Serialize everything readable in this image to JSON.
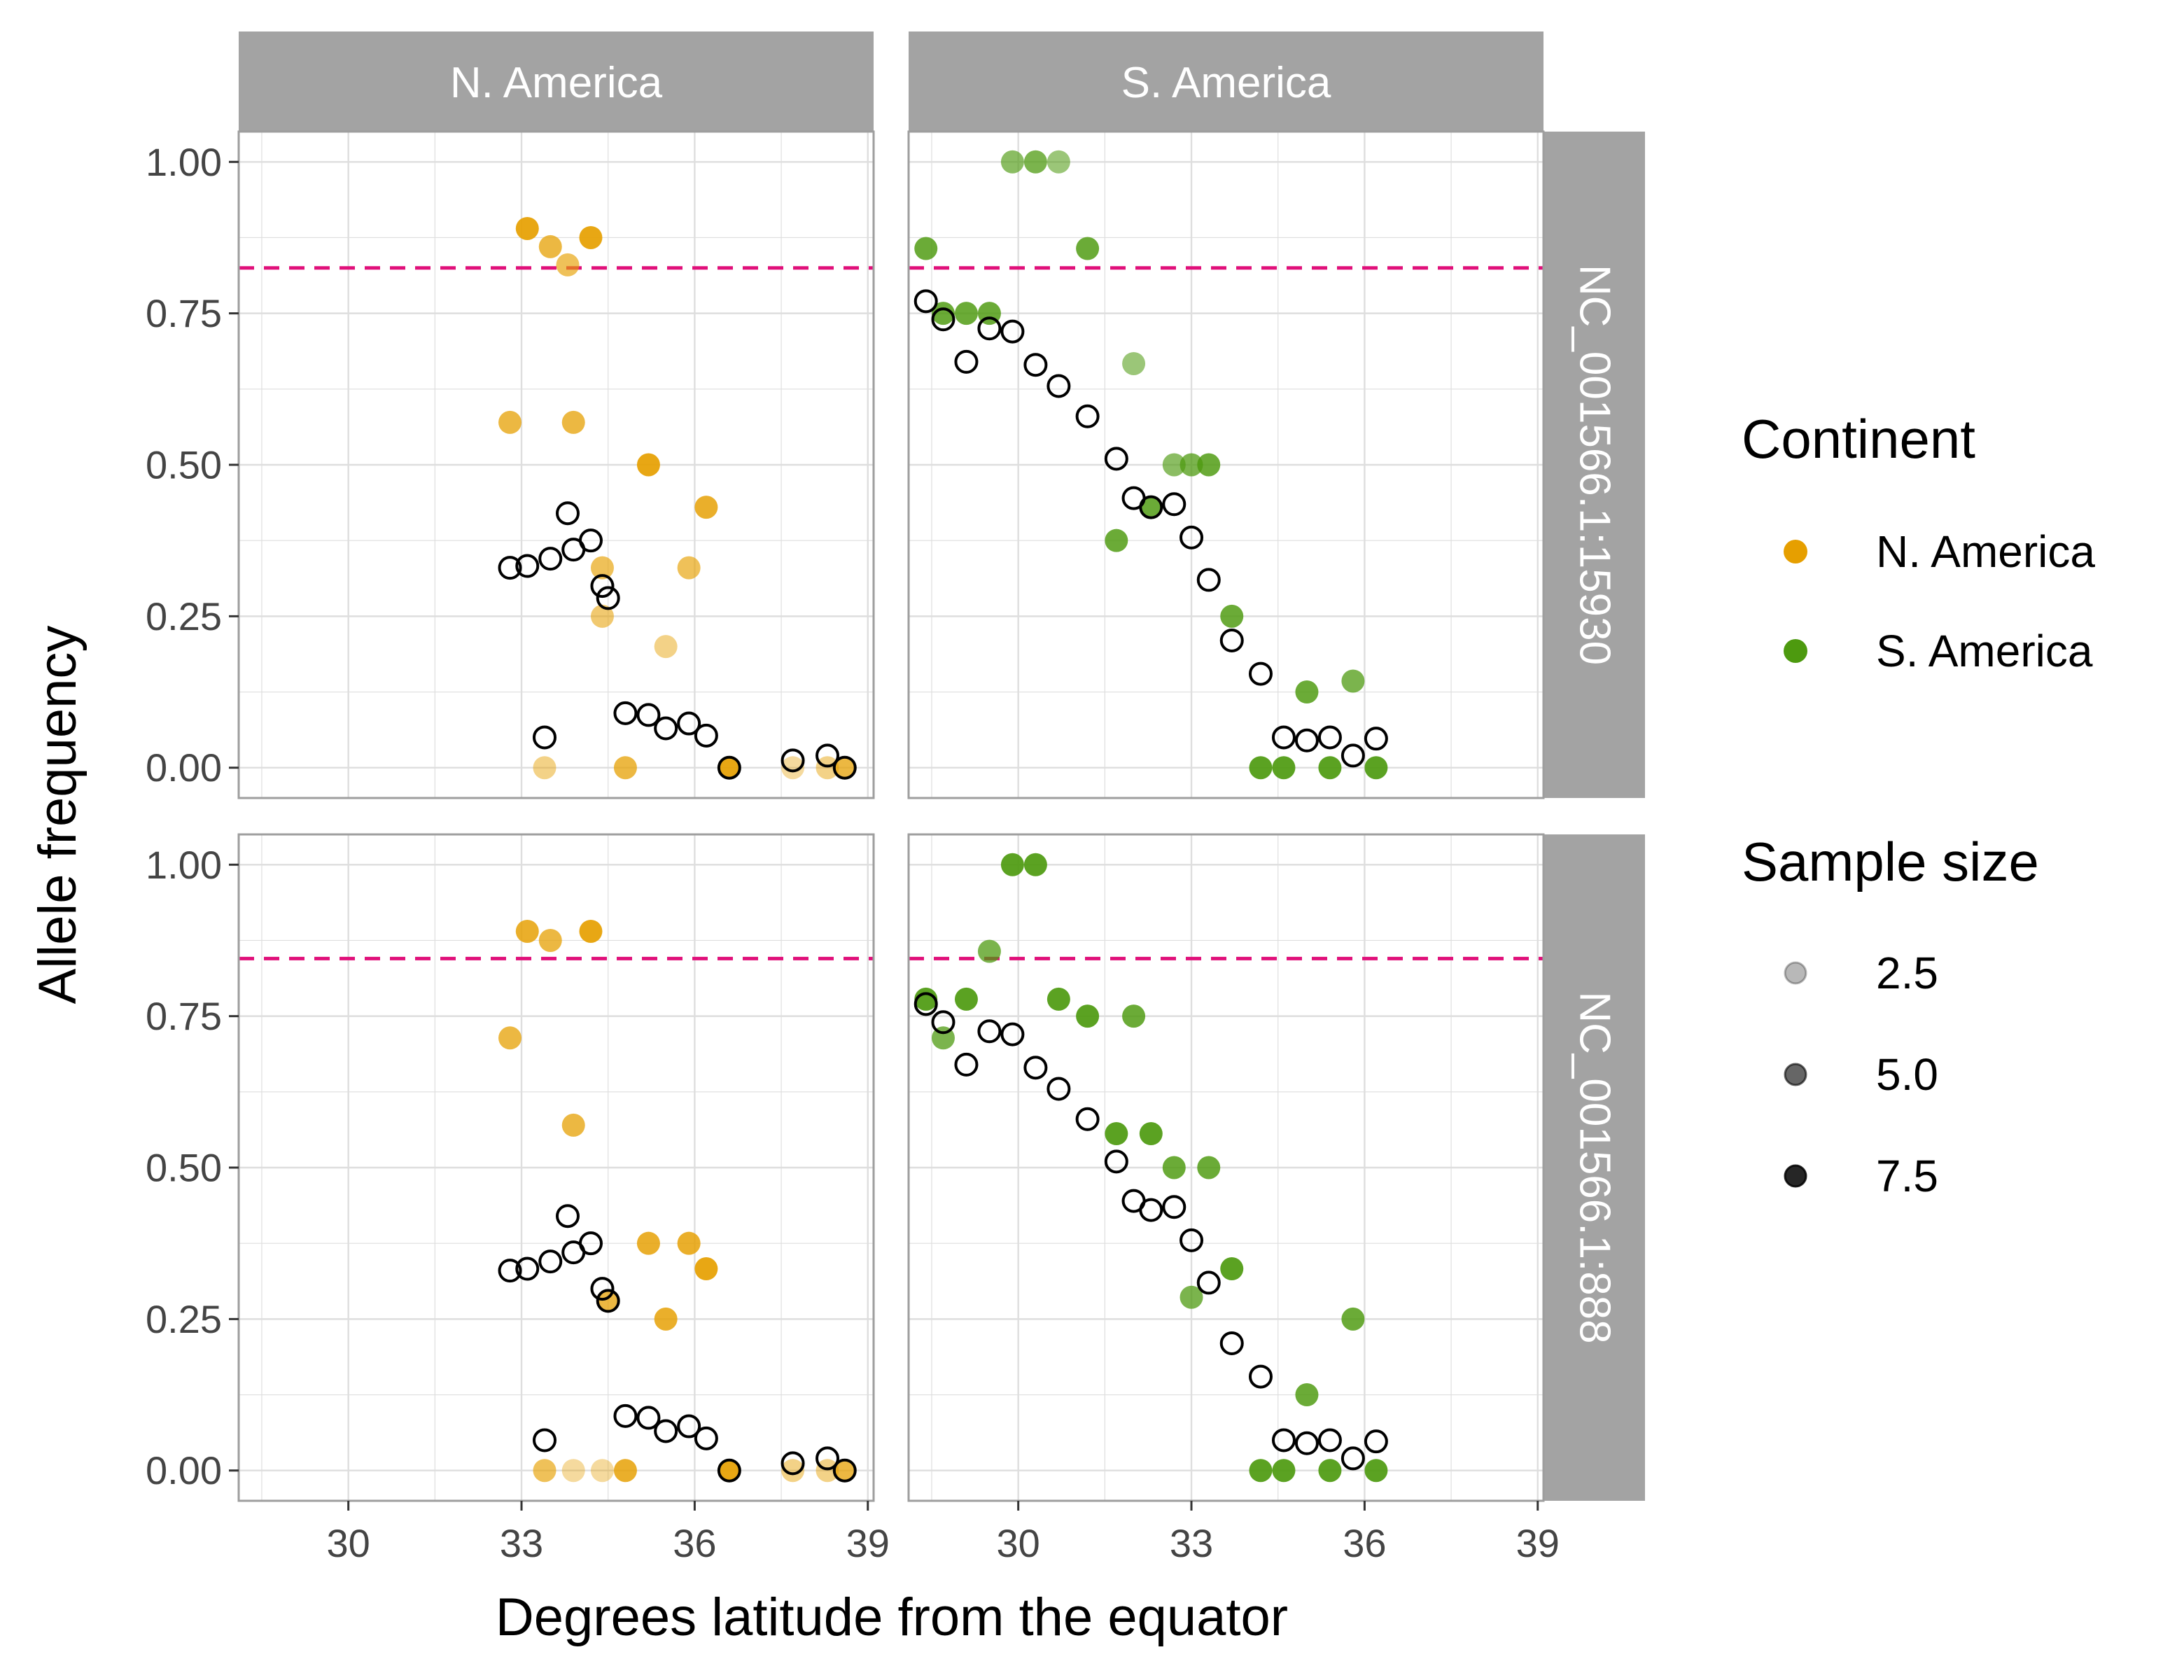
{
  "chart_data": {
    "type": "scatter",
    "xlabel": "Degrees latitude from the equator",
    "ylabel": "Allele frequency",
    "xlim": [
      28.1,
      39.1
    ],
    "ylim": [
      -0.05,
      1.05
    ],
    "x_ticks": [
      "30",
      "33",
      "36",
      "39"
    ],
    "y_ticks": [
      "0.00",
      "0.25",
      "0.50",
      "0.75",
      "1.00"
    ],
    "grid": true,
    "facet_columns": [
      "N. America",
      "S. America"
    ],
    "facet_rows": [
      "NC_001566.1:15930",
      "NC_001566.1:888"
    ],
    "colors": {
      "N. America": "#e69f00",
      "S. America": "#4d9a0f",
      "threshold_line": "#e0107a",
      "strip": "#a3a3a3",
      "gridline": "#dedede"
    },
    "legend": {
      "position": "right",
      "continent_title": "Continent",
      "continent_items": [
        "N. America",
        "S. America"
      ],
      "size_title": "Sample size",
      "size_items": [
        "2.5",
        "5.0",
        "7.5"
      ]
    },
    "panels": [
      {
        "row": "NC_001566.1:15930",
        "col": "N. America",
        "threshold": 0.825,
        "observed": [
          [
            32.8,
            0.57,
            6
          ],
          [
            33.1,
            0.89,
            8
          ],
          [
            33.5,
            0.86,
            6
          ],
          [
            33.8,
            0.83,
            5
          ],
          [
            33.9,
            0.57,
            6
          ],
          [
            34.2,
            0.875,
            8
          ],
          [
            34.4,
            0.33,
            5
          ],
          [
            34.4,
            0.25,
            4
          ],
          [
            35.2,
            0.5,
            8
          ],
          [
            35.5,
            0.2,
            3
          ],
          [
            35.9,
            0.33,
            5
          ],
          [
            36.2,
            0.43,
            7
          ],
          [
            33.4,
            0.0,
            3
          ],
          [
            34.8,
            0.0,
            6
          ],
          [
            36.6,
            0.0,
            8
          ],
          [
            37.7,
            0.0,
            2
          ],
          [
            38.3,
            0.0,
            3
          ],
          [
            38.6,
            0.0,
            6
          ]
        ],
        "predicted": [
          [
            32.8,
            0.33
          ],
          [
            33.1,
            0.333
          ],
          [
            33.5,
            0.345
          ],
          [
            33.8,
            0.42
          ],
          [
            33.9,
            0.36
          ],
          [
            34.2,
            0.375
          ],
          [
            34.4,
            0.3
          ],
          [
            34.5,
            0.28
          ],
          [
            33.4,
            0.05
          ],
          [
            34.8,
            0.09
          ],
          [
            35.2,
            0.087
          ],
          [
            35.5,
            0.065
          ],
          [
            35.9,
            0.073
          ],
          [
            36.2,
            0.053
          ],
          [
            36.6,
            0.0
          ],
          [
            37.7,
            0.012
          ],
          [
            38.3,
            0.02
          ],
          [
            38.6,
            0.0
          ]
        ]
      },
      {
        "row": "NC_001566.1:15930",
        "col": "S. America",
        "threshold": 0.825,
        "observed": [
          [
            28.4,
            0.857,
            7
          ],
          [
            28.7,
            0.75,
            7
          ],
          [
            29.1,
            0.75,
            7
          ],
          [
            29.5,
            0.75,
            7
          ],
          [
            29.9,
            1.0,
            5
          ],
          [
            30.3,
            1.0,
            6
          ],
          [
            30.7,
            1.0,
            4
          ],
          [
            31.2,
            0.857,
            7
          ],
          [
            31.7,
            0.375,
            7
          ],
          [
            32.0,
            0.667,
            4
          ],
          [
            32.3,
            0.43,
            7
          ],
          [
            32.7,
            0.5,
            5
          ],
          [
            33.0,
            0.5,
            6
          ],
          [
            33.3,
            0.5,
            7
          ],
          [
            33.7,
            0.25,
            7
          ],
          [
            34.2,
            0.0,
            8
          ],
          [
            34.6,
            0.0,
            8
          ],
          [
            35.0,
            0.125,
            7
          ],
          [
            35.4,
            0.0,
            8
          ],
          [
            35.8,
            0.143,
            6
          ],
          [
            36.2,
            0.0,
            8
          ]
        ],
        "predicted": [
          [
            28.4,
            0.77
          ],
          [
            28.7,
            0.74
          ],
          [
            29.1,
            0.67
          ],
          [
            29.5,
            0.725
          ],
          [
            29.9,
            0.72
          ],
          [
            30.3,
            0.665
          ],
          [
            30.7,
            0.63
          ],
          [
            31.2,
            0.58
          ],
          [
            31.7,
            0.51
          ],
          [
            32.0,
            0.445
          ],
          [
            32.3,
            0.43
          ],
          [
            32.7,
            0.435
          ],
          [
            33.0,
            0.38
          ],
          [
            33.3,
            0.31
          ],
          [
            33.7,
            0.21
          ],
          [
            34.2,
            0.155
          ],
          [
            34.6,
            0.05
          ],
          [
            35.0,
            0.045
          ],
          [
            35.4,
            0.05
          ],
          [
            35.8,
            0.02
          ],
          [
            36.2,
            0.048
          ]
        ]
      },
      {
        "row": "NC_001566.1:888",
        "col": "N. America",
        "threshold": 0.845,
        "observed": [
          [
            32.8,
            0.714,
            6
          ],
          [
            33.1,
            0.89,
            7
          ],
          [
            33.5,
            0.875,
            6
          ],
          [
            33.9,
            0.57,
            6
          ],
          [
            34.2,
            0.89,
            8
          ],
          [
            34.5,
            0.28,
            6
          ],
          [
            35.2,
            0.375,
            7
          ],
          [
            35.5,
            0.25,
            7
          ],
          [
            35.9,
            0.375,
            7
          ],
          [
            36.2,
            0.333,
            8
          ],
          [
            33.4,
            0.0,
            5
          ],
          [
            33.9,
            0.0,
            2
          ],
          [
            34.4,
            0.0,
            2
          ],
          [
            34.8,
            0.0,
            7
          ],
          [
            36.6,
            0.0,
            8
          ],
          [
            37.7,
            0.0,
            3
          ],
          [
            38.3,
            0.0,
            3
          ],
          [
            38.6,
            0.0,
            6
          ]
        ],
        "predicted": [
          [
            32.8,
            0.33
          ],
          [
            33.1,
            0.333
          ],
          [
            33.5,
            0.345
          ],
          [
            33.8,
            0.42
          ],
          [
            33.9,
            0.36
          ],
          [
            34.2,
            0.375
          ],
          [
            34.4,
            0.3
          ],
          [
            34.5,
            0.28
          ],
          [
            33.4,
            0.05
          ],
          [
            34.8,
            0.09
          ],
          [
            35.2,
            0.087
          ],
          [
            35.5,
            0.065
          ],
          [
            35.9,
            0.073
          ],
          [
            36.2,
            0.053
          ],
          [
            36.6,
            0.0
          ],
          [
            37.7,
            0.012
          ],
          [
            38.3,
            0.02
          ],
          [
            38.6,
            0.0
          ]
        ]
      },
      {
        "row": "NC_001566.1:888",
        "col": "S. America",
        "threshold": 0.845,
        "observed": [
          [
            28.4,
            0.778,
            8
          ],
          [
            28.7,
            0.714,
            6
          ],
          [
            29.1,
            0.778,
            8
          ],
          [
            29.5,
            0.857,
            6
          ],
          [
            29.9,
            1.0,
            8
          ],
          [
            30.3,
            1.0,
            8
          ],
          [
            30.7,
            0.778,
            8
          ],
          [
            31.2,
            0.75,
            8
          ],
          [
            31.7,
            0.556,
            8
          ],
          [
            32.0,
            0.75,
            7
          ],
          [
            32.3,
            0.556,
            8
          ],
          [
            32.7,
            0.5,
            7
          ],
          [
            33.0,
            0.286,
            6
          ],
          [
            33.3,
            0.5,
            7
          ],
          [
            33.7,
            0.333,
            8
          ],
          [
            34.2,
            0.0,
            8
          ],
          [
            34.6,
            0.0,
            8
          ],
          [
            35.0,
            0.125,
            7
          ],
          [
            35.4,
            0.0,
            8
          ],
          [
            35.8,
            0.25,
            7
          ],
          [
            36.2,
            0.0,
            8
          ]
        ],
        "predicted": [
          [
            28.4,
            0.77
          ],
          [
            28.7,
            0.74
          ],
          [
            29.1,
            0.67
          ],
          [
            29.5,
            0.725
          ],
          [
            29.9,
            0.72
          ],
          [
            30.3,
            0.665
          ],
          [
            30.7,
            0.63
          ],
          [
            31.2,
            0.58
          ],
          [
            31.7,
            0.51
          ],
          [
            32.0,
            0.445
          ],
          [
            32.3,
            0.43
          ],
          [
            32.7,
            0.435
          ],
          [
            33.0,
            0.38
          ],
          [
            33.3,
            0.31
          ],
          [
            33.7,
            0.21
          ],
          [
            34.2,
            0.155
          ],
          [
            34.6,
            0.05
          ],
          [
            35.0,
            0.045
          ],
          [
            35.4,
            0.05
          ],
          [
            35.8,
            0.02
          ],
          [
            36.2,
            0.048
          ]
        ]
      }
    ]
  }
}
